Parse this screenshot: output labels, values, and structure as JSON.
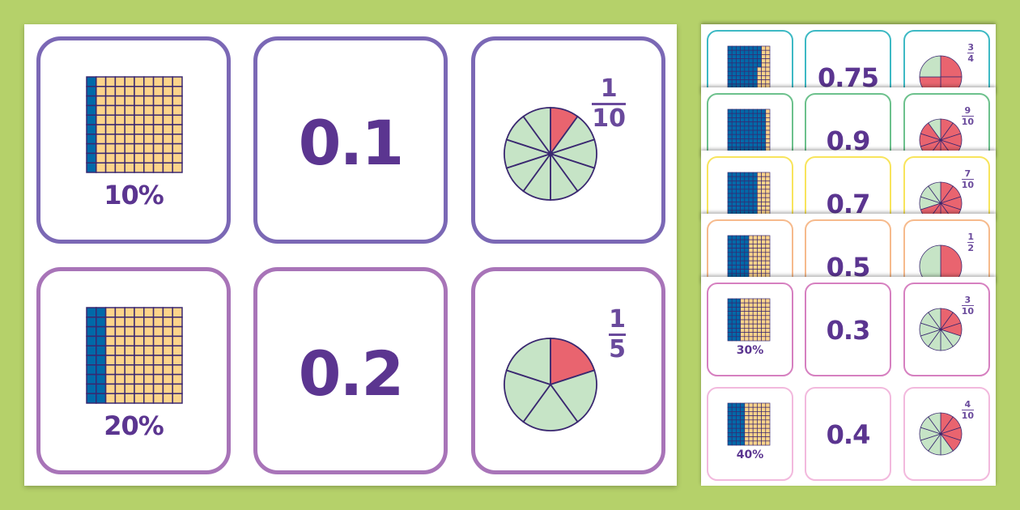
{
  "colors": {
    "grid_shaded": "#0069a8",
    "grid_unshaded": "#fdd48a",
    "pie_shaded": "#e9646f",
    "pie_unshaded": "#c6e4c6",
    "outline": "#3a2870",
    "text": "#5b3590"
  },
  "main_sheet": {
    "rows": [
      {
        "border": "#7b68b5",
        "percent": 10,
        "percent_label": "10%",
        "decimal": "0.1",
        "numerator": "1",
        "denominator": "10"
      },
      {
        "border": "#a874b8",
        "percent": 20,
        "percent_label": "20%",
        "decimal": "0.2",
        "numerator": "1",
        "denominator": "5"
      }
    ]
  },
  "side_sheets": [
    {
      "border": "#3db9c4",
      "percent": 75,
      "decimal": "0.75",
      "numerator": "3",
      "denominator": "4"
    },
    {
      "border": "#6cc18c",
      "percent": 90,
      "decimal": "0.9",
      "numerator": "9",
      "denominator": "10"
    },
    {
      "border": "#f8e45c",
      "percent": 70,
      "decimal": "0.7",
      "numerator": "7",
      "denominator": "10"
    },
    {
      "border": "#f6ba8c",
      "percent": 50,
      "decimal": "0.5",
      "numerator": "1",
      "denominator": "2"
    },
    {
      "border": "#d680c0",
      "percent": 30,
      "percent_label": "30%",
      "decimal": "0.3",
      "numerator": "3",
      "denominator": "10"
    },
    {
      "border": "#f2b9dd",
      "percent": 40,
      "percent_label": "40%",
      "decimal": "0.4",
      "numerator": "4",
      "denominator": "10"
    }
  ]
}
